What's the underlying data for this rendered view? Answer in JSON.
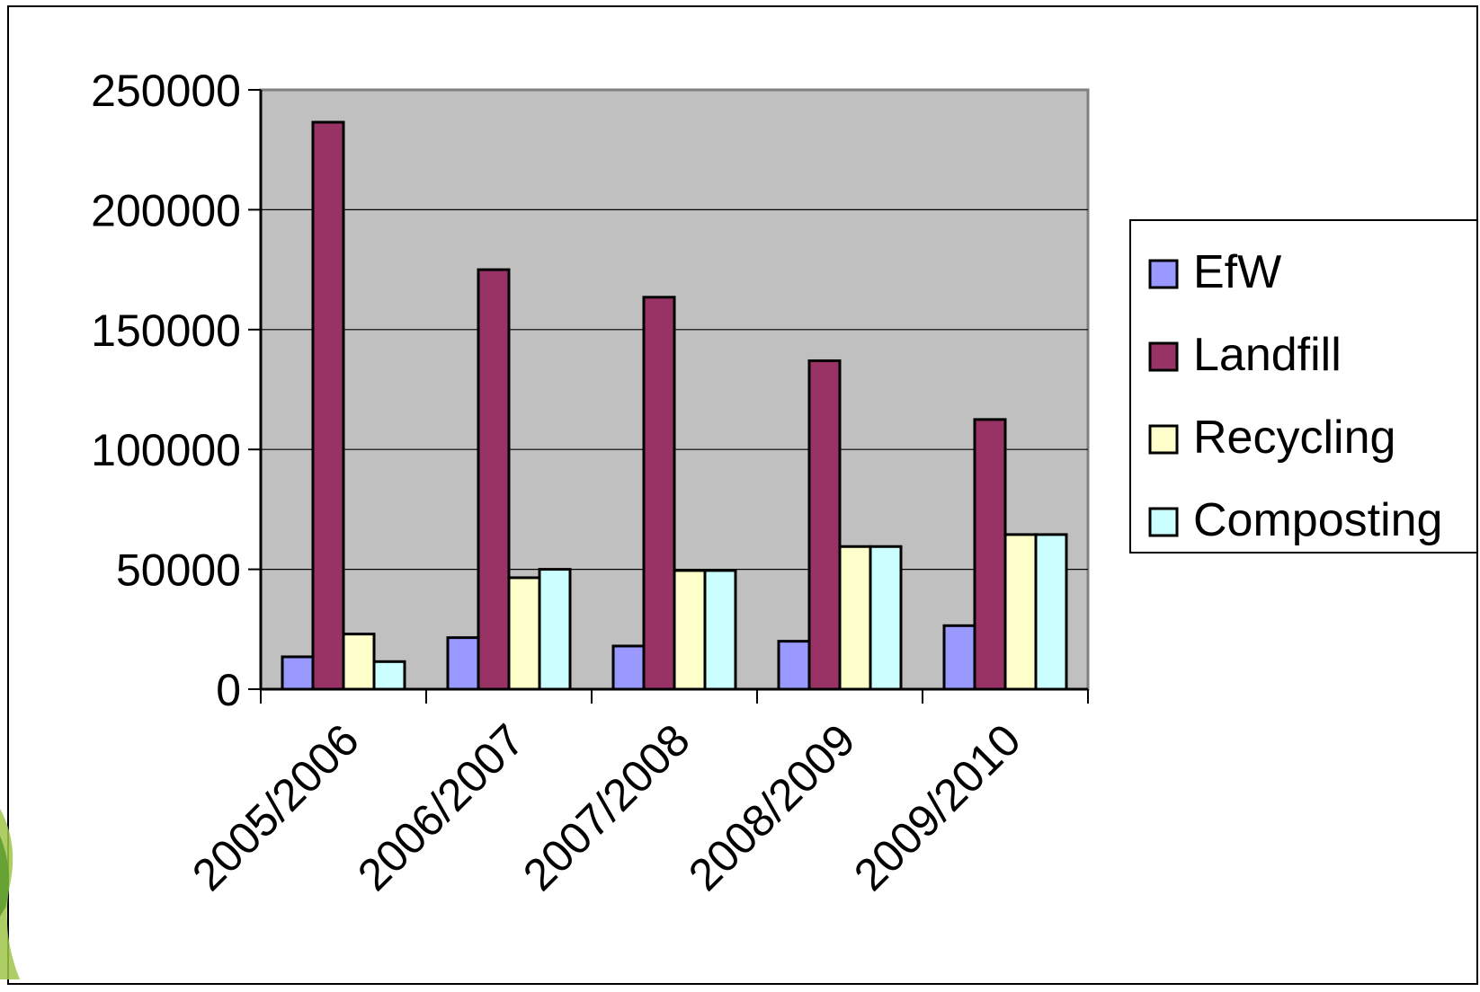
{
  "chart_data": {
    "type": "bar",
    "title": "",
    "xlabel": "",
    "ylabel": "",
    "ylim": [
      0,
      250000
    ],
    "yticks": [
      "0",
      "50000",
      "100000",
      "150000",
      "200000",
      "250000"
    ],
    "grid": true,
    "legend_position": "right",
    "categories": [
      "2005/2006",
      "2006/2007",
      "2007/2008",
      "2008/2009",
      "2009/2010"
    ],
    "series": [
      {
        "name": "EfW",
        "color": "#9999ff",
        "values": [
          13500,
          21500,
          18000,
          20000,
          26500
        ]
      },
      {
        "name": "Landfill",
        "color": "#993366",
        "values": [
          236500,
          175000,
          163500,
          137000,
          112500
        ]
      },
      {
        "name": "Recycling",
        "color": "#ffffcc",
        "values": [
          23000,
          46500,
          49500,
          59500,
          64500
        ]
      },
      {
        "name": "Composting",
        "color": "#ccffff",
        "values": [
          11500,
          50000,
          49500,
          59500,
          64500
        ]
      }
    ],
    "plot_background": "#c0c0c0"
  }
}
